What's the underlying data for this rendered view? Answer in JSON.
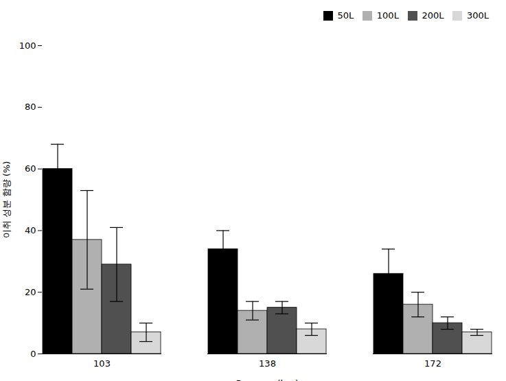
{
  "chart_data": {
    "type": "bar",
    "xlabel": "Pressure (bar)",
    "ylabel": "이취 성분 함량 (%)",
    "categories": [
      "103",
      "138",
      "172"
    ],
    "series": [
      {
        "name": "50L",
        "color": "#000000",
        "values": [
          60,
          34,
          26
        ],
        "errors": [
          8,
          6,
          8
        ]
      },
      {
        "name": "100L",
        "color": "#b0b0b0",
        "values": [
          37,
          14,
          16
        ],
        "errors": [
          16,
          3,
          4
        ]
      },
      {
        "name": "200L",
        "color": "#505050",
        "values": [
          29,
          15,
          10
        ],
        "errors": [
          12,
          2,
          2
        ]
      },
      {
        "name": "300L",
        "color": "#d8d8d8",
        "values": [
          7,
          8,
          7
        ],
        "errors": [
          3,
          2,
          1
        ]
      }
    ],
    "ylim": [
      0,
      100
    ],
    "yticks": [
      0,
      20,
      40,
      60,
      80,
      100
    ],
    "grid": false,
    "legend": "upper right"
  }
}
